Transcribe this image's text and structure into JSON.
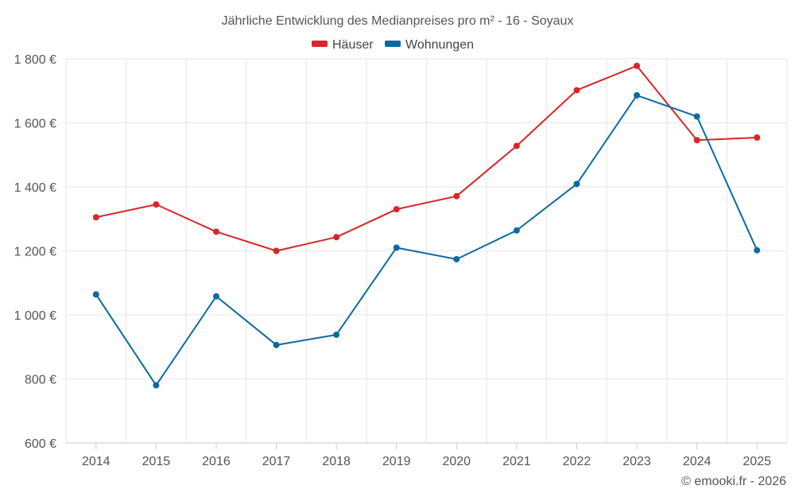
{
  "chart_data": {
    "type": "line",
    "title": "Jährliche Entwicklung des Medianpreises pro m² - 16 - Soyaux",
    "categories": [
      "2014",
      "2015",
      "2016",
      "2017",
      "2018",
      "2019",
      "2020",
      "2021",
      "2022",
      "2023",
      "2024",
      "2025"
    ],
    "series": [
      {
        "name": "Häuser",
        "color": "#d62728",
        "values": [
          1305,
          1345,
          1260,
          1200,
          1243,
          1330,
          1371,
          1528,
          1702,
          1778,
          1546,
          1554
        ]
      },
      {
        "name": "Wohnungen",
        "color": "#0d6aa0",
        "values": [
          1064,
          780,
          1058,
          906,
          938,
          1210,
          1174,
          1264,
          1409,
          1686,
          1620,
          1202
        ]
      }
    ],
    "ylim": [
      600,
      1800
    ],
    "yticks": [
      600,
      800,
      1000,
      1200,
      1400,
      1600,
      1800
    ],
    "ytick_labels": [
      "600 €",
      "800 €",
      "1 000 €",
      "1 200 €",
      "1 400 €",
      "1 600 €",
      "1 800 €"
    ],
    "xlabel": "",
    "ylabel": "",
    "grid": true,
    "legend": "top-center"
  },
  "credit": "© emooki.fr - 2026"
}
